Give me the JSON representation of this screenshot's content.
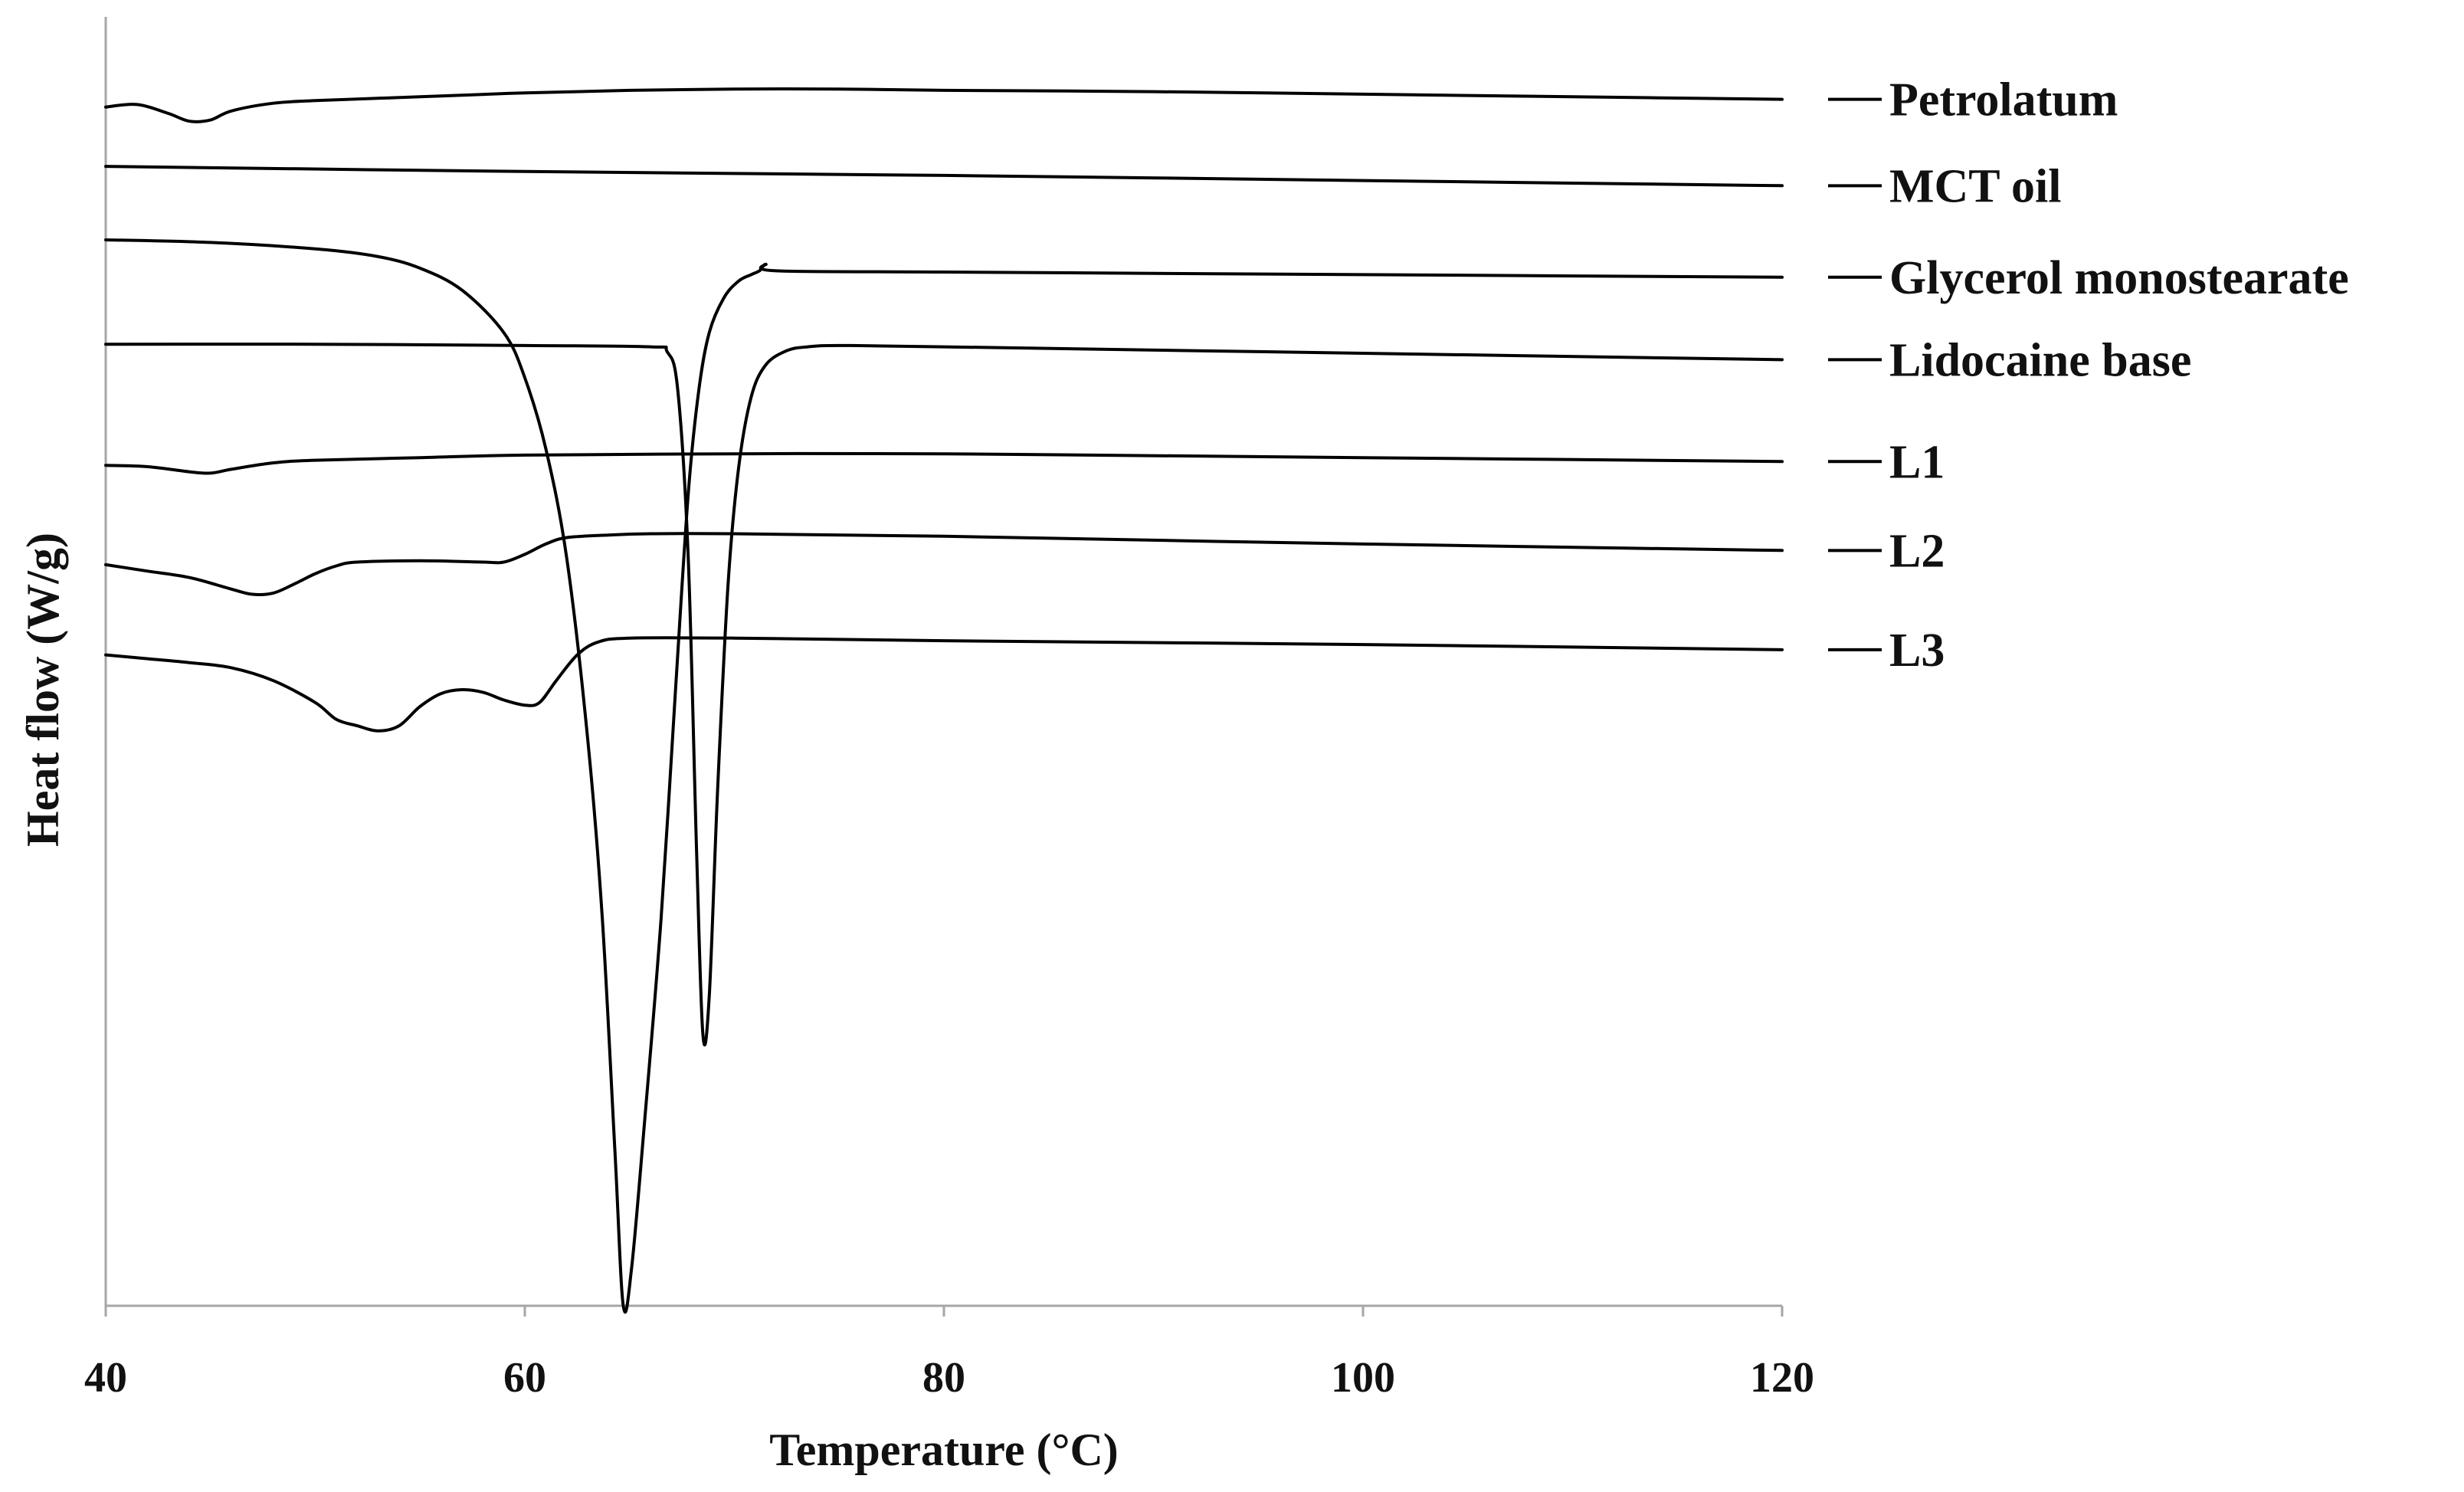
{
  "chart_data": {
    "type": "line",
    "title": "",
    "xlabel": "Temperature (°C)",
    "ylabel": "Heat flow (W/g)",
    "xlim": [
      40,
      120
    ],
    "ylim": [
      0,
      100
    ],
    "xticks": [
      "40",
      "60",
      "80",
      "100",
      "120"
    ],
    "grid": false,
    "legend_position": "right",
    "line_color": "#000000",
    "series": [
      {
        "name": "Petrolatum",
        "x": [
          40,
          41.5,
          43,
          44,
          45,
          46,
          48,
          50,
          55,
          60,
          65,
          70,
          75,
          80,
          90,
          100,
          110,
          120
        ],
        "y": [
          93.0,
          93.2,
          92.5,
          91.9,
          92.0,
          92.7,
          93.3,
          93.5,
          93.8,
          94.1,
          94.3,
          94.4,
          94.4,
          94.3,
          94.2,
          94.0,
          93.8,
          93.6
        ]
      },
      {
        "name": "MCT oil",
        "x": [
          40,
          60,
          80,
          100,
          120
        ],
        "y": [
          88.4,
          88.0,
          87.7,
          87.3,
          86.9
        ]
      },
      {
        "name": "Glycerol monostearate",
        "x": [
          40,
          45,
          50,
          53,
          55,
          57,
          59,
          60,
          61,
          62,
          63,
          63.7,
          64.3,
          64.7,
          65.1,
          65.7,
          66.5,
          67.2,
          67.8,
          68.3,
          68.8,
          69.5,
          70.2,
          70.8,
          71.2,
          71.5,
          72,
          80,
          100,
          120
        ],
        "y": [
          82.7,
          82.5,
          82.0,
          81.4,
          80.5,
          78.8,
          75.5,
          72.0,
          66.5,
          58.0,
          44.0,
          30.0,
          12.0,
          0.0,
          3.0,
          14.0,
          30.0,
          48.0,
          63.0,
          71.0,
          75.5,
          78.2,
          79.5,
          80.0,
          80.3,
          80.8,
          80.3,
          80.2,
          80.0,
          79.8
        ]
      },
      {
        "name": "Lidocaine base",
        "x": [
          40,
          50,
          60,
          66,
          66.8,
          67.3,
          67.8,
          68.2,
          68.5,
          68.8,
          69.2,
          69.7,
          70.2,
          70.8,
          71.5,
          72.5,
          73.5,
          75,
          80,
          100,
          120
        ],
        "y": [
          74.6,
          74.6,
          74.5,
          74.4,
          74.0,
          71.0,
          58.0,
          35.0,
          21.0,
          24.0,
          40.0,
          56.0,
          65.0,
          70.5,
          73.0,
          74.1,
          74.4,
          74.5,
          74.4,
          73.9,
          73.4
        ]
      },
      {
        "name": "L1",
        "x": [
          40,
          42,
          44,
          45,
          46,
          48,
          50,
          55,
          60,
          70,
          80,
          100,
          120
        ],
        "y": [
          65.2,
          65.1,
          64.7,
          64.6,
          64.9,
          65.4,
          65.6,
          65.8,
          66.0,
          66.1,
          66.1,
          65.8,
          65.5
        ]
      },
      {
        "name": "L2",
        "x": [
          40,
          42,
          44,
          46,
          47,
          48,
          49,
          50,
          51,
          52,
          55,
          58,
          59,
          60,
          61,
          62,
          64,
          66,
          70,
          80,
          100,
          120
        ],
        "y": [
          57.5,
          57.0,
          56.5,
          55.6,
          55.2,
          55.3,
          56.0,
          56.8,
          57.4,
          57.7,
          57.8,
          57.7,
          57.7,
          58.3,
          59.1,
          59.6,
          59.8,
          59.9,
          59.9,
          59.7,
          59.1,
          58.6
        ]
      },
      {
        "name": "L3",
        "x": [
          40,
          42,
          44,
          46,
          48,
          50,
          51,
          52,
          53,
          54,
          55,
          56,
          57,
          58,
          59,
          60,
          60.7,
          61.5,
          62.5,
          63.5,
          65,
          70,
          80,
          100,
          120
        ],
        "y": [
          50.5,
          50.2,
          49.9,
          49.5,
          48.5,
          46.8,
          45.5,
          45.0,
          44.6,
          45.0,
          46.5,
          47.5,
          47.8,
          47.6,
          47.0,
          46.6,
          46.8,
          48.5,
          50.5,
          51.5,
          51.8,
          51.8,
          51.6,
          51.3,
          50.9
        ]
      }
    ]
  }
}
